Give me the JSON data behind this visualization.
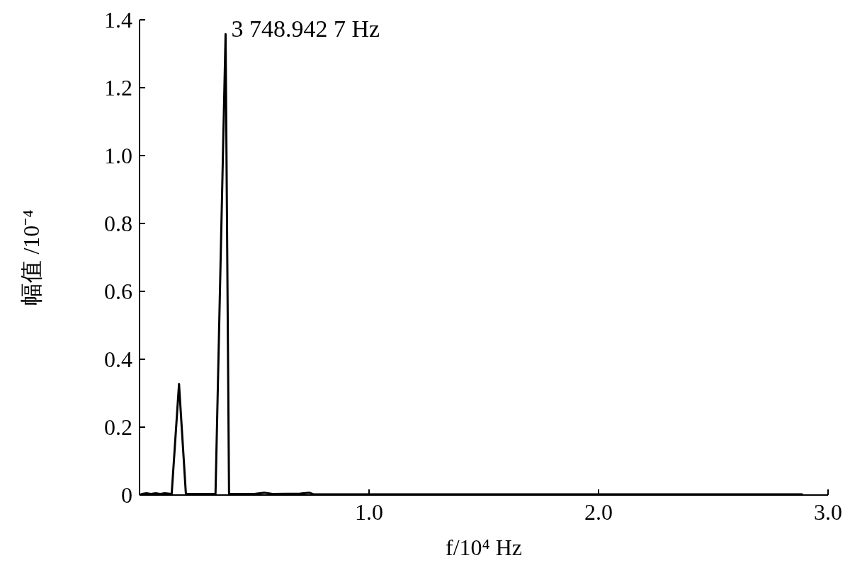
{
  "chart_data": {
    "type": "line",
    "xlabel": "f/10⁴ Hz",
    "ylabel": "幅值 /10⁻⁴",
    "x": [
      0,
      0.01,
      0.03,
      0.05,
      0.07,
      0.09,
      0.11,
      0.14,
      0.172,
      0.202,
      0.331,
      0.3749,
      0.39,
      0.5,
      0.543,
      0.58,
      0.7,
      0.739,
      0.76,
      1.5,
      2.89
    ],
    "series": [
      {
        "color": "#000000",
        "values": [
          0,
          0.003,
          0.005,
          0.003,
          0.005,
          0.003,
          0.005,
          0.003,
          0.327,
          0.003,
          0.003,
          1.358,
          0.003,
          0.003,
          0.007,
          0.003,
          0.004,
          0.007,
          0.002,
          0.002,
          0.002
        ]
      }
    ],
    "xlim": [
      0,
      3.0
    ],
    "ylim": [
      0,
      1.4
    ],
    "xticks": [
      {
        "value": 1,
        "label": "1.0"
      },
      {
        "value": 2,
        "label": "2.0"
      },
      {
        "value": 3,
        "label": "3.0"
      }
    ],
    "yticks": [
      0,
      0.2,
      0.4,
      0.6,
      0.8,
      {
        "value": 1,
        "label": "1.0"
      },
      1.2,
      1.4
    ],
    "annotations": [
      {
        "text": "3 748.942 7 Hz",
        "x": 0.3749,
        "y": 1.358
      }
    ],
    "grid": false,
    "marker": "none",
    "line_style": "solid"
  }
}
